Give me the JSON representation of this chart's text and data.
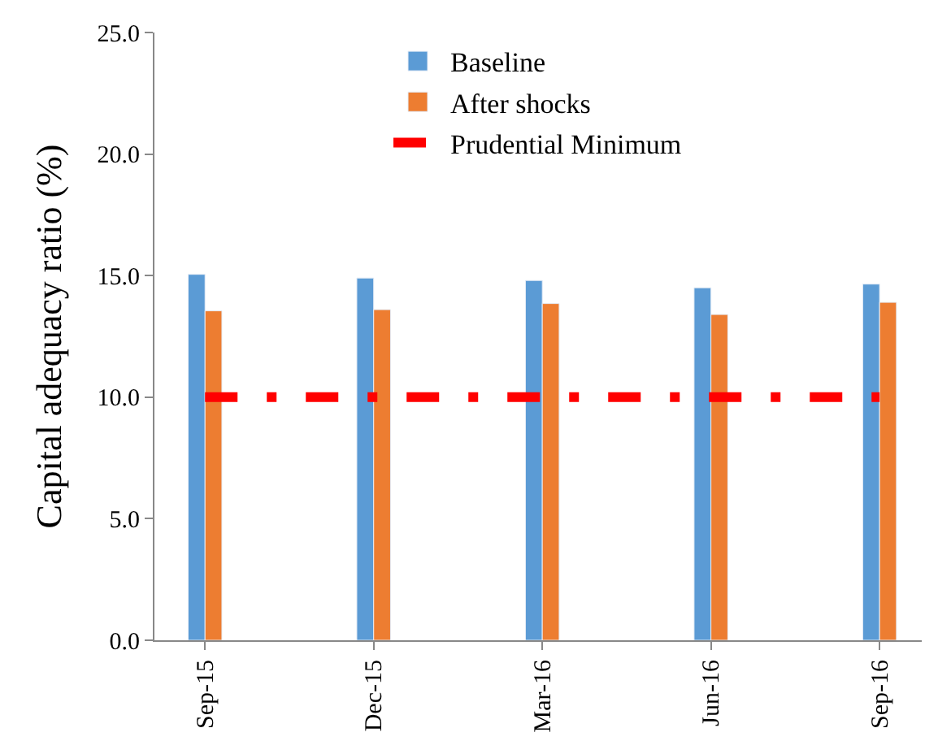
{
  "chart_data": {
    "type": "bar",
    "ylabel": "Capital adequacy ratio (%)",
    "categories": [
      "Sep-15",
      "Dec-15",
      "Mar-16",
      "Jun-16",
      "Sep-16"
    ],
    "series": [
      {
        "name": "Baseline",
        "color": "#5b9bd5",
        "values": [
          15.05,
          14.9,
          14.8,
          14.5,
          14.65
        ]
      },
      {
        "name": "After shocks",
        "color": "#ed7d31",
        "values": [
          13.55,
          13.6,
          13.85,
          13.4,
          13.9
        ]
      },
      {
        "name": "Prudential Minimum",
        "type": "line",
        "color": "#ff0000",
        "line_style": "dashed",
        "values": [
          10,
          10,
          10,
          10,
          10
        ]
      }
    ],
    "ylim": [
      0,
      25
    ],
    "yticks": [
      {
        "value": 0,
        "label": "0.0"
      },
      {
        "value": 5,
        "label": "5.0"
      },
      {
        "value": 10,
        "label": "10.0"
      },
      {
        "value": 15,
        "label": "15.0"
      },
      {
        "value": 20,
        "label": "20.0"
      },
      {
        "value": 25,
        "label": "25.0"
      }
    ],
    "legend": "top"
  }
}
